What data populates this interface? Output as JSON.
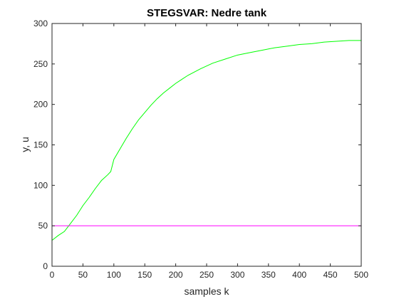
{
  "chart_data": {
    "type": "line",
    "title": "STEGSVAR: Nedre tank",
    "xlabel": "samples k",
    "ylabel": "y, u",
    "xlim": [
      0,
      500
    ],
    "ylim": [
      0,
      300
    ],
    "xticks": [
      0,
      50,
      100,
      150,
      200,
      250,
      300,
      350,
      400,
      450,
      500
    ],
    "yticks": [
      0,
      50,
      100,
      150,
      200,
      250,
      300
    ],
    "grid": false,
    "legend": "none",
    "series": [
      {
        "color": "#00ff00",
        "x": [
          0,
          10,
          20,
          30,
          40,
          50,
          60,
          70,
          80,
          90,
          95,
          100,
          110,
          120,
          130,
          140,
          150,
          160,
          170,
          180,
          190,
          200,
          220,
          240,
          260,
          280,
          300,
          320,
          340,
          360,
          380,
          400,
          420,
          440,
          460,
          480,
          500
        ],
        "y": [
          32,
          38,
          43,
          53,
          63,
          75,
          85,
          96,
          106,
          113,
          117,
          132,
          145,
          158,
          170,
          181,
          190,
          199,
          207,
          214,
          220,
          226,
          236,
          244,
          251,
          256,
          261,
          264,
          267,
          270,
          272,
          274,
          275,
          277,
          278,
          279,
          279
        ]
      },
      {
        "color": "#ff00ff",
        "x": [
          0,
          500
        ],
        "y": [
          50,
          50
        ]
      }
    ]
  }
}
